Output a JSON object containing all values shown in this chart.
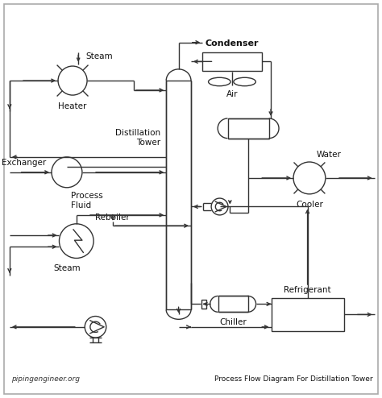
{
  "title": "Process Flow Diagram For Distillation Tower",
  "watermark": "pipingengineer.org",
  "bg_color": "#ffffff",
  "border_color": "#aaaaaa",
  "line_color": "#333333",
  "figsize": [
    4.74,
    4.94
  ],
  "dpi": 100,
  "labels": {
    "steam_heater": "Steam",
    "heater": "Heater",
    "distillation_tower": "Distillation\nTower",
    "condenser": "Condenser",
    "air": "Air",
    "exchanger": "Exchanger",
    "process_fluid": "Process\nFluid",
    "reboiler": "Reboiler",
    "steam_reboiler": "Steam",
    "cooler": "Cooler",
    "water": "Water",
    "chiller": "Chiller",
    "refrigerant": "Refrigerant"
  }
}
